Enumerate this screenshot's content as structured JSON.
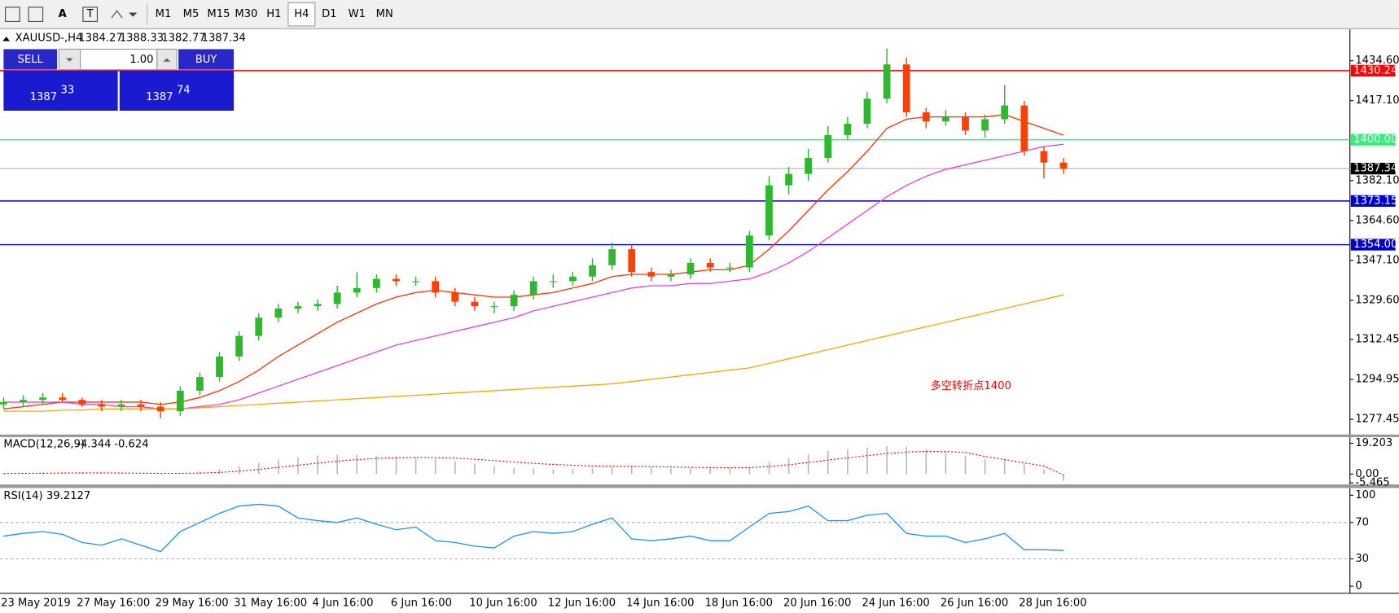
{
  "toolbar": {
    "tools": [
      "A",
      "T"
    ],
    "timeframes": [
      "M1",
      "M5",
      "M15",
      "M30",
      "H1",
      "H4",
      "D1",
      "W1",
      "MN"
    ],
    "active": "H4"
  },
  "header": {
    "symbol": "XAUUSD-,H4",
    "ohlc": [
      1384.27,
      1388.33,
      1382.77,
      1387.34
    ]
  },
  "trade_panel": {
    "sell": "SELL",
    "buy": "BUY",
    "lot": "1.00",
    "bid_big": "1387",
    "bid_small": "33",
    "ask_big": "1387",
    "ask_small": "74"
  },
  "chart_data": [
    {
      "type": "candlestick",
      "categories": [
        "23 May 2019",
        null,
        null,
        null,
        "27 May 16:00",
        null,
        null,
        null,
        "29 May 16:00",
        null,
        null,
        null,
        "31 May 16:00",
        null,
        null,
        null,
        "4 Jun 16:00",
        null,
        null,
        null,
        "6 Jun 16:00",
        null,
        null,
        null,
        "10 Jun 16:00",
        null,
        null,
        null,
        "12 Jun 16:00",
        null,
        null,
        null,
        "14 Jun 16:00",
        null,
        null,
        null,
        "18 Jun 16:00",
        null,
        null,
        null,
        "20 Jun 16:00",
        null,
        null,
        null,
        "24 Jun 16:00",
        null,
        null,
        null,
        "26 Jun 16:00",
        null,
        null,
        null,
        "28 Jun 16:00",
        null,
        null
      ],
      "open": [
        1284,
        1285,
        1286,
        1287,
        1286,
        1284,
        1283,
        1284,
        1283,
        1281,
        1290,
        1296,
        1305,
        1314,
        1322,
        1326,
        1327,
        1328,
        1333,
        1335,
        1339,
        1338,
        1338,
        1333,
        1329,
        1327,
        1327,
        1332,
        1338,
        1338,
        1340,
        1345,
        1352,
        1342,
        1340,
        1341,
        1346,
        1344,
        1344,
        1358,
        1380,
        1385,
        1392,
        1402,
        1407,
        1418,
        1433,
        1412,
        1408,
        1410,
        1404,
        1409,
        1415,
        1395,
        1390
      ],
      "high": [
        1287,
        1288,
        1289,
        1289,
        1287,
        1286,
        1286,
        1286,
        1285,
        1292,
        1298,
        1307,
        1316,
        1324,
        1328,
        1329,
        1330,
        1336,
        1342,
        1341,
        1341,
        1340,
        1340,
        1335,
        1331,
        1329,
        1334,
        1340,
        1341,
        1342,
        1348,
        1355,
        1354,
        1344,
        1343,
        1348,
        1348,
        1346,
        1360,
        1384,
        1388,
        1396,
        1406,
        1410,
        1421,
        1440,
        1436,
        1414,
        1413,
        1412,
        1411,
        1424,
        1417,
        1397,
        1392
      ],
      "low": [
        1282,
        1283,
        1284,
        1285,
        1283,
        1281,
        1281,
        1281,
        1278,
        1279,
        1288,
        1294,
        1303,
        1312,
        1320,
        1324,
        1325,
        1326,
        1331,
        1333,
        1336,
        1336,
        1331,
        1327,
        1325,
        1324,
        1325,
        1330,
        1335,
        1336,
        1338,
        1343,
        1340,
        1338,
        1338,
        1339,
        1342,
        1342,
        1342,
        1356,
        1376,
        1382,
        1390,
        1400,
        1405,
        1416,
        1410,
        1405,
        1406,
        1402,
        1401,
        1407,
        1393,
        1383,
        1385
      ],
      "close": [
        1285,
        1286,
        1287,
        1286,
        1284,
        1283,
        1284,
        1283,
        1281,
        1290,
        1296,
        1305,
        1314,
        1322,
        1326,
        1327,
        1328,
        1333,
        1335,
        1339,
        1338,
        1338,
        1333,
        1329,
        1327,
        1327,
        1332,
        1338,
        1338,
        1340,
        1345,
        1352,
        1342,
        1340,
        1341,
        1346,
        1344,
        1344,
        1358,
        1380,
        1385,
        1392,
        1402,
        1407,
        1418,
        1433,
        1412,
        1408,
        1410,
        1404,
        1409,
        1415,
        1395,
        1390,
        1387.34
      ],
      "up_color": "#2db82d",
      "down_color": "#ff4000",
      "series": [
        {
          "color": "#ff3300",
          "values": [
            1282,
            1283,
            1284,
            1285,
            1285,
            1285,
            1285,
            1285,
            1284,
            1285,
            1287,
            1290,
            1294,
            1299,
            1305,
            1310,
            1315,
            1320,
            1324,
            1328,
            1331,
            1333,
            1334,
            1333,
            1332,
            1331,
            1331,
            1332,
            1333,
            1335,
            1337,
            1340,
            1341,
            1341,
            1341,
            1342,
            1343,
            1343,
            1345,
            1352,
            1360,
            1369,
            1378,
            1386,
            1395,
            1405,
            1409,
            1410,
            1410,
            1410,
            1410,
            1411,
            1408,
            1405,
            1402
          ]
        },
        {
          "color": "#e83ee8",
          "values": [
            1285,
            1285,
            1285,
            1285,
            1284,
            1284,
            1283,
            1283,
            1282,
            1282,
            1283,
            1284,
            1286,
            1289,
            1292,
            1295,
            1298,
            1301,
            1304,
            1307,
            1310,
            1312,
            1314,
            1316,
            1318,
            1320,
            1322,
            1325,
            1327,
            1329,
            1331,
            1333,
            1335,
            1336,
            1336,
            1337,
            1337,
            1338,
            1339,
            1342,
            1346,
            1351,
            1357,
            1363,
            1369,
            1375,
            1380,
            1384,
            1387,
            1389,
            1391,
            1393,
            1395,
            1397,
            1398
          ]
        },
        {
          "color": "#ffa500",
          "values": [
            1281,
            1281,
            1281,
            1281.5,
            1281.5,
            1282,
            1282,
            1282,
            1282,
            1282,
            1282.5,
            1283,
            1283.5,
            1284,
            1284.5,
            1285,
            1285.5,
            1286,
            1286.5,
            1287,
            1287.5,
            1288,
            1288.5,
            1289,
            1289.5,
            1290,
            1290.5,
            1291,
            1291.5,
            1292,
            1292.5,
            1293,
            1294,
            1295,
            1296,
            1297,
            1298,
            1299,
            1300,
            1302,
            1304,
            1306,
            1308,
            1310,
            1312,
            1314,
            1316,
            1318,
            1320,
            1322,
            1324,
            1326,
            1328,
            1330,
            1332
          ]
        }
      ],
      "levels": [
        {
          "value": 1430.24,
          "color": "#ff0000"
        },
        {
          "value": 1400,
          "label": "1400.00",
          "color": "#33ee77"
        },
        {
          "value": 1387.34,
          "color": "#c0c0c0",
          "box": "#000000"
        },
        {
          "value": 1373.15,
          "color": "#0000cc"
        },
        {
          "value": 1354,
          "label": "1354.00",
          "color": "#0000cc"
        }
      ],
      "ylim": [
        1270.8,
        1447.5
      ],
      "yticks": [
        {
          "value": 1434.6,
          "label": "1434.60"
        },
        {
          "value": 1417.1,
          "label": "1417.10"
        },
        {
          "value": 1382.1,
          "label": "1382.10"
        },
        {
          "value": 1364.6,
          "label": "1364.60"
        },
        {
          "value": 1347.1,
          "label": "1347.10"
        },
        {
          "value": 1329.6,
          "label": "1329.60"
        },
        1312.45,
        1294.95,
        1277.45
      ],
      "annotation": "多空转折点1400",
      "annotation_color": "#ff0000"
    },
    {
      "type": "macd",
      "title": "MACD(12,26,9)",
      "histogram": [
        0.5,
        0.8,
        1,
        1,
        0.8,
        0.5,
        0.3,
        0,
        -0.3,
        0.5,
        1.5,
        3,
        5,
        7,
        9,
        10.5,
        11.5,
        12,
        12,
        11.5,
        11,
        10.5,
        9.5,
        8,
        6.5,
        5,
        4,
        3.5,
        3,
        3,
        3.5,
        4.5,
        4.5,
        4,
        3.5,
        3.5,
        3.5,
        3.5,
        4.5,
        7.5,
        10,
        12.5,
        14.5,
        15.5,
        16.5,
        17.5,
        17,
        15.5,
        13.5,
        11.5,
        9.5,
        8.5,
        6,
        3,
        -4.344
      ],
      "signal": [
        0.3,
        0.4,
        0.5,
        0.6,
        0.7,
        0.7,
        0.6,
        0.5,
        0.4,
        0.4,
        0.6,
        1,
        1.8,
        2.9,
        4.2,
        5.5,
        6.8,
        8,
        9,
        9.7,
        10.2,
        10.4,
        10.3,
        9.9,
        9.2,
        8.4,
        7.5,
        6.7,
        6,
        5.5,
        5,
        4.9,
        4.8,
        4.6,
        4.4,
        4.2,
        4,
        3.9,
        4,
        4.7,
        5.8,
        7.2,
        8.7,
        10.1,
        11.5,
        12.8,
        13.7,
        14.1,
        14,
        13.5,
        11,
        9,
        7,
        5,
        -0.624
      ],
      "histogram_color": "#b8b8b8",
      "signal_color": "#ff0000",
      "ylim": [
        -6.5,
        23
      ],
      "yticks": [
        19.203,
        {
          "value": 0,
          "label": "0.00"
        },
        -5.465
      ]
    },
    {
      "type": "rsi",
      "title": "RSI(14)",
      "color": "#1e90ff",
      "values": [
        55,
        58,
        60,
        57,
        48,
        45,
        52,
        45,
        38,
        60,
        70,
        80,
        88,
        90,
        88,
        75,
        72,
        70,
        75,
        68,
        62,
        65,
        50,
        48,
        44,
        42,
        55,
        60,
        58,
        60,
        68,
        75,
        52,
        50,
        52,
        55,
        50,
        50,
        65,
        80,
        82,
        88,
        72,
        72,
        78,
        80,
        58,
        55,
        55,
        48,
        52,
        58,
        40,
        40,
        39.2127
      ],
      "ylim": [
        -7.8,
        106.9
      ],
      "yticks": [
        100,
        70,
        30,
        0
      ],
      "levels": [
        70,
        30
      ]
    }
  ]
}
